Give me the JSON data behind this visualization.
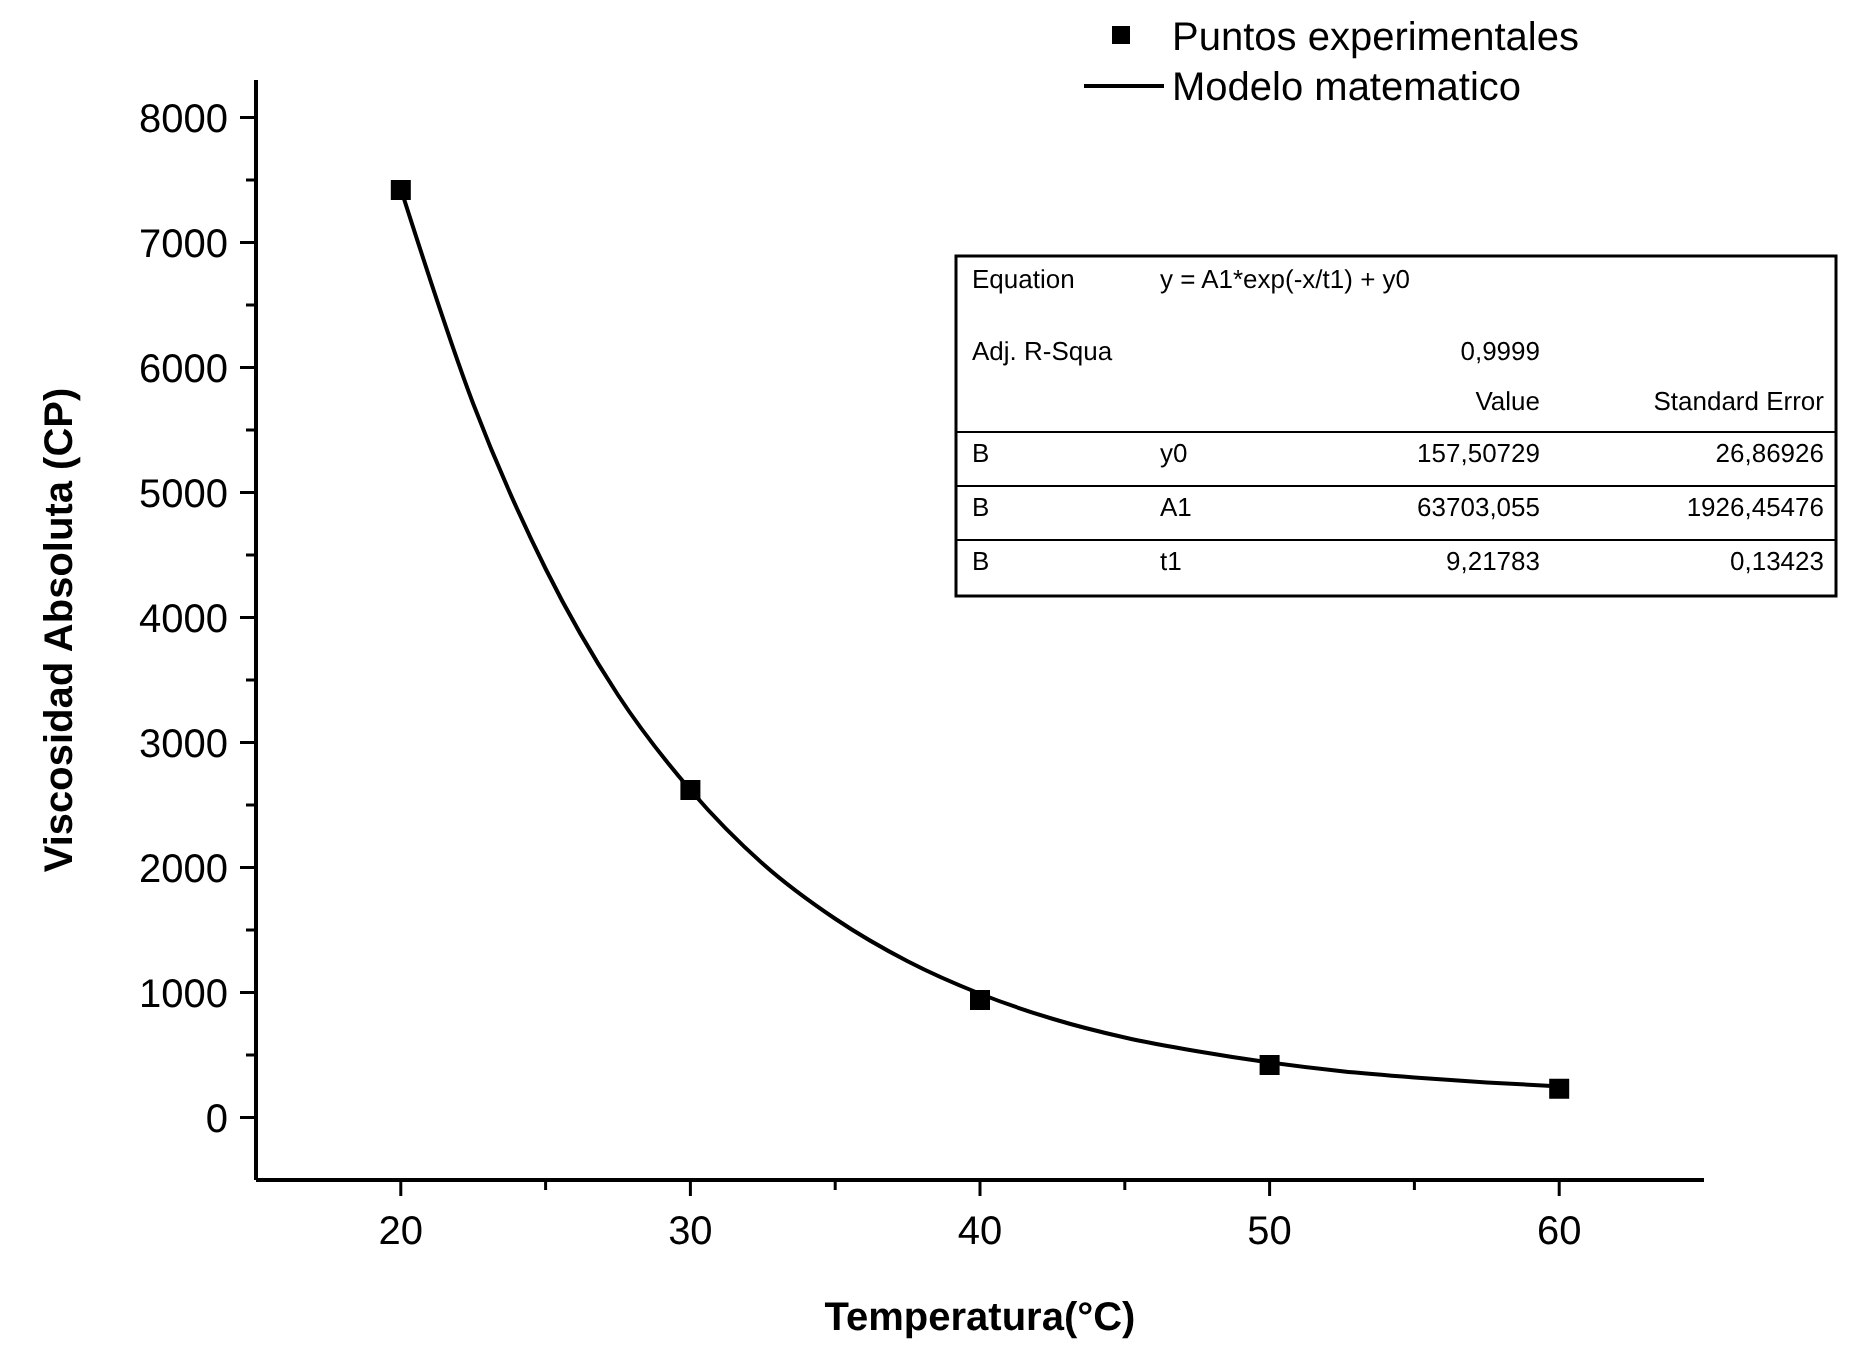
{
  "chart_data": {
    "type": "scatter",
    "xlabel": "Temperatura(°C)",
    "ylabel": "Viscosidad Absoluta (CP)",
    "xlim": [
      15,
      65
    ],
    "ylim": [
      -500,
      8300
    ],
    "xticks": [
      20,
      {
        "value": 25,
        "label": null
      },
      30,
      {
        "value": 35,
        "label": null
      },
      40,
      {
        "value": 45,
        "label": null
      },
      50,
      {
        "value": 55,
        "label": null
      },
      60
    ],
    "yticks": [
      0,
      {
        "value": 500,
        "label": null
      },
      1000,
      {
        "value": 1500,
        "label": null
      },
      2000,
      {
        "value": 2500,
        "label": null
      },
      3000,
      {
        "value": 3500,
        "label": null
      },
      4000,
      {
        "value": 4500,
        "label": null
      },
      5000,
      {
        "value": 5500,
        "label": null
      },
      6000,
      {
        "value": 6500,
        "label": null
      },
      7000,
      {
        "value": 7500,
        "label": null
      },
      8000
    ],
    "legend": "top right",
    "grid": false,
    "series": [
      {
        "name": "Puntos experimentales",
        "marker": "square",
        "color": "#000000",
        "x": [
          20,
          30,
          40,
          50,
          60
        ],
        "values": [
          7420,
          2620,
          940,
          420,
          230
        ]
      },
      {
        "name": "Modelo matematico",
        "type": "line",
        "line_style": "solid",
        "color": "#000000",
        "x": [
          20,
          22.5,
          25,
          27.5,
          30,
          32.5,
          35,
          37.5,
          40,
          42.5,
          45,
          47.5,
          50,
          52.5,
          55,
          57.5,
          60
        ],
        "values": [
          7430,
          5710,
          4390,
          3380,
          2620,
          2030,
          1590,
          1250,
          990,
          790,
          640,
          530,
          440,
          370,
          320,
          280,
          250
        ]
      }
    ],
    "annotations": [
      "Equation",
      "y = A1*exp(-x/t1) + y0",
      "Adj. R-Squa",
      "0,9999",
      "Value",
      "Standard Error",
      "B",
      "y0",
      "157,50729",
      "26,86926",
      "B",
      "A1",
      "63703,055",
      "1926,45476",
      "B",
      "t1",
      "9,21783",
      "0,13423"
    ]
  }
}
